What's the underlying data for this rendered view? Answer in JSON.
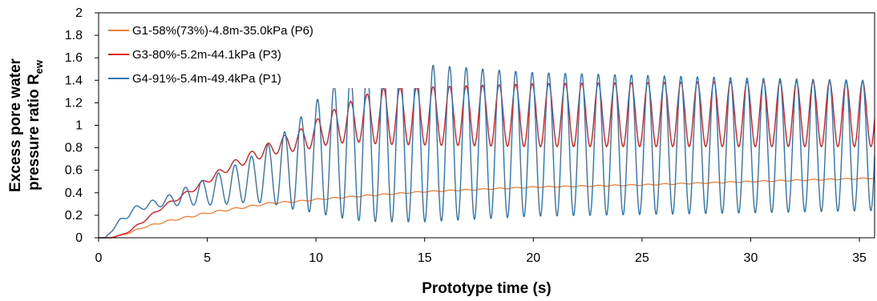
{
  "chart_data": {
    "type": "line",
    "title": "",
    "xlabel": "Prototype time (s)",
    "ylabel": {
      "line1": "Excess pore water",
      "line2_prefix": "pressure ratio R",
      "line2_sub": "ew"
    },
    "xlim": [
      0,
      35.7
    ],
    "ylim": [
      0,
      2
    ],
    "x_ticks": [
      0,
      5,
      10,
      15,
      20,
      25,
      30,
      35
    ],
    "x_tick_labels": [
      "0",
      "5",
      "10",
      "15",
      "20",
      "25",
      "30",
      "35"
    ],
    "y_ticks": [
      0,
      0.2,
      0.4,
      0.6,
      0.8,
      1,
      1.2,
      1.4,
      1.6,
      1.8,
      2
    ],
    "y_tick_labels": [
      "0",
      "0.2",
      "0.4",
      "0.6",
      "0.8",
      "1",
      "1.2",
      "1.4",
      "1.6",
      "1.8",
      "2"
    ],
    "grid": false,
    "legend_position": "top-left",
    "series": [
      {
        "name": "G1-58%(73%)-4.8m-35.0kPa (P6)",
        "color": "#ED7D31",
        "envelope": {
          "t": [
            0,
            0.5,
            1,
            1.5,
            2,
            3,
            4,
            5,
            6,
            7,
            8,
            9,
            10,
            12,
            15,
            20,
            25,
            30,
            35.7
          ],
          "mid": [
            0,
            0.0,
            0.02,
            0.05,
            0.09,
            0.14,
            0.18,
            0.22,
            0.25,
            0.28,
            0.31,
            0.32,
            0.34,
            0.37,
            0.41,
            0.45,
            0.47,
            0.5,
            0.53
          ],
          "amp": [
            0,
            0,
            0.003,
            0.005,
            0.006,
            0.008,
            0.008,
            0.008,
            0.008,
            0.008,
            0.008,
            0.007,
            0.006,
            0.006,
            0.005,
            0.005,
            0.005,
            0.005,
            0.005
          ]
        },
        "period": 0.76
      },
      {
        "name": "G3-80%-5.2m-44.1kPa (P3)",
        "color": "#E31A1C",
        "envelope": {
          "t": [
            0,
            0.6,
            1,
            1.5,
            2,
            3,
            4,
            5,
            6,
            7,
            8,
            9,
            9.5,
            10,
            11,
            12,
            13,
            20,
            30,
            35.7
          ],
          "mid": [
            0,
            0.0,
            0.02,
            0.07,
            0.14,
            0.28,
            0.39,
            0.51,
            0.63,
            0.72,
            0.8,
            0.86,
            0.88,
            0.93,
            1.0,
            1.05,
            1.08,
            1.09,
            1.1,
            1.1
          ],
          "amp": [
            0,
            0,
            0.005,
            0.008,
            0.01,
            0.012,
            0.018,
            0.025,
            0.035,
            0.045,
            0.06,
            0.09,
            0.1,
            0.12,
            0.16,
            0.2,
            0.25,
            0.28,
            0.29,
            0.29
          ]
        },
        "period": 0.76
      },
      {
        "name": "G4-91%-5.4m-49.4kPa (P1)",
        "color": "#2E75B6",
        "envelope": {
          "t": [
            0,
            0.3,
            1,
            1.5,
            2,
            3,
            4,
            5,
            6,
            7,
            8,
            9,
            10,
            11,
            12,
            13,
            15,
            20,
            30,
            35.7
          ],
          "mid": [
            0,
            0.0,
            0.15,
            0.23,
            0.28,
            0.32,
            0.37,
            0.41,
            0.46,
            0.52,
            0.58,
            0.63,
            0.72,
            0.78,
            0.83,
            0.84,
            0.84,
            0.83,
            0.82,
            0.82
          ],
          "amp": [
            0,
            0,
            0.02,
            0.03,
            0.03,
            0.04,
            0.08,
            0.12,
            0.16,
            0.2,
            0.28,
            0.38,
            0.5,
            0.6,
            0.68,
            0.7,
            0.7,
            0.64,
            0.6,
            0.58
          ]
        },
        "period": 0.76
      }
    ]
  }
}
